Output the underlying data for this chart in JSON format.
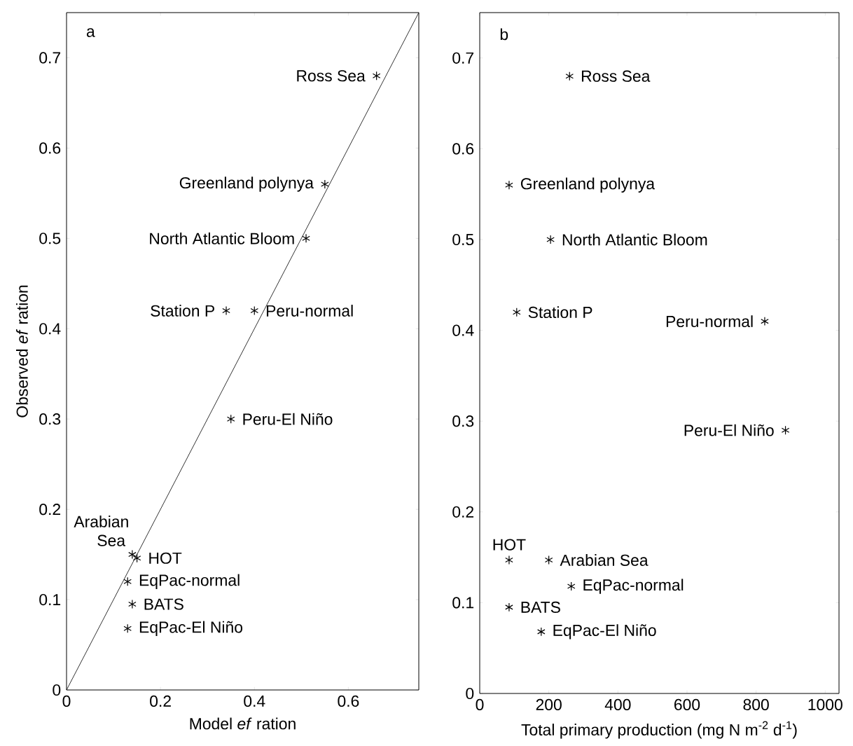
{
  "chart_data": [
    {
      "type": "scatter",
      "xlabel": "Model *ef* ration",
      "ylabel": "Observed *ef* ration",
      "xlim": [
        0,
        0.75
      ],
      "ylim": [
        0,
        0.75
      ],
      "xticks": [
        0,
        0.2,
        0.4,
        0.6
      ],
      "yticks": [
        0,
        0.1,
        0.2,
        0.3,
        0.4,
        0.5,
        0.6,
        0.7
      ],
      "marker": "cross",
      "series": [
        {
          "color": "#000000",
          "x": [
            0.66,
            0.55,
            0.51,
            0.34,
            0.4,
            0.35,
            0.14,
            0.15,
            0.13,
            0.14,
            0.13
          ],
          "values": [
            0.68,
            0.56,
            0.5,
            0.42,
            0.42,
            0.3,
            0.15,
            0.146,
            0.12,
            0.095,
            0.068
          ]
        },
        {
          "type": "line",
          "marker": "none",
          "color": "#000000",
          "x": [
            0,
            0.75
          ],
          "values": [
            0,
            0.75
          ]
        }
      ],
      "annotations": [
        "a",
        {
          "text": "Ross Sea",
          "x": 0.66,
          "y": 0.68
        },
        {
          "text": "Greenland polynya",
          "x": 0.55,
          "y": 0.56
        },
        {
          "text": "North Atlantic Bloom",
          "x": 0.51,
          "y": 0.5
        },
        {
          "text": "Station P",
          "x": 0.34,
          "y": 0.42
        },
        {
          "text": "Peru-normal",
          "x": 0.4,
          "y": 0.42
        },
        {
          "text": "Peru-El Niño",
          "x": 0.35,
          "y": 0.3
        },
        {
          "text": "Arabian Sea",
          "x": 0.14,
          "y": 0.15
        },
        {
          "text": "HOT",
          "x": 0.15,
          "y": 0.146
        },
        {
          "text": "EqPac-normal",
          "x": 0.13,
          "y": 0.12
        },
        {
          "text": "BATS",
          "x": 0.14,
          "y": 0.095
        },
        {
          "text": "EqPac-El Niño",
          "x": 0.13,
          "y": 0.068
        }
      ]
    },
    {
      "type": "scatter",
      "xlabel": "Total primary production (mg N m$^{-2}$ d$^{-1}$)",
      "xlim": [
        0,
        1040
      ],
      "ylim": [
        0,
        0.75
      ],
      "xticks": [
        0,
        200,
        400,
        600,
        800,
        1000
      ],
      "yticks": [
        0,
        0.1,
        0.2,
        0.3,
        0.4,
        0.5,
        0.6,
        0.7
      ],
      "marker": "cross",
      "series": [
        {
          "color": "#000000",
          "x": [
            260,
            85,
            205,
            107,
            825,
            885,
            85,
            200,
            265,
            85,
            178
          ],
          "values": [
            0.68,
            0.56,
            0.5,
            0.42,
            0.41,
            0.29,
            0.147,
            0.147,
            0.118,
            0.095,
            0.068
          ]
        }
      ],
      "annotations": [
        "b",
        {
          "text": "Ross Sea",
          "x": 260,
          "y": 0.68
        },
        {
          "text": "Greenland polynya",
          "x": 85,
          "y": 0.56
        },
        {
          "text": "North Atlantic Bloom",
          "x": 205,
          "y": 0.5
        },
        {
          "text": "Station P",
          "x": 107,
          "y": 0.42
        },
        {
          "text": "Peru-normal",
          "x": 825,
          "y": 0.41
        },
        {
          "text": "Peru-El Niño",
          "x": 885,
          "y": 0.29
        },
        {
          "text": "HOT",
          "x": 85,
          "y": 0.147
        },
        {
          "text": "Arabian Sea",
          "x": 200,
          "y": 0.147
        },
        {
          "text": "EqPac-normal",
          "x": 265,
          "y": 0.118
        },
        {
          "text": "BATS",
          "x": 85,
          "y": 0.095
        },
        {
          "text": "EqPac-El Niño",
          "x": 178,
          "y": 0.068
        }
      ]
    }
  ]
}
